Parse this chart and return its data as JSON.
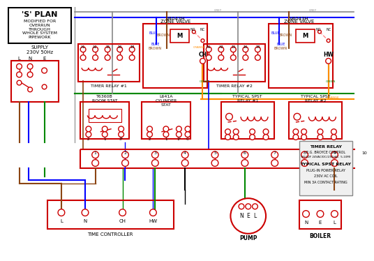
{
  "bg_color": "#ffffff",
  "wire_colors": {
    "blue": "#0000ff",
    "red": "#cc0000",
    "green": "#008800",
    "brown": "#8B4513",
    "orange": "#ff8c00",
    "grey": "#888888",
    "black": "#000000",
    "white": "#ffffff"
  },
  "terminal_labels": [
    "1",
    "2",
    "3",
    "4",
    "5",
    "6",
    "7",
    "8",
    "9",
    "10"
  ],
  "zv1_terminals": [
    "A1",
    "A2",
    "15",
    "16",
    "18"
  ],
  "zv2_terminals": [
    "A1",
    "A2",
    "15",
    "16",
    "18"
  ],
  "tc_terminals": [
    "L",
    "N",
    "CH",
    "HW"
  ],
  "notes": [
    "TIMER RELAY",
    "E.G. BROYCE CONTROL",
    "M1EDF 24VAC/DC/230VAC  5-10Ml",
    "",
    "TYPICAL SPST RELAY",
    "PLUG-IN POWER RELAY",
    "230V AC COIL",
    "MIN 3A CONTACT RATING"
  ]
}
